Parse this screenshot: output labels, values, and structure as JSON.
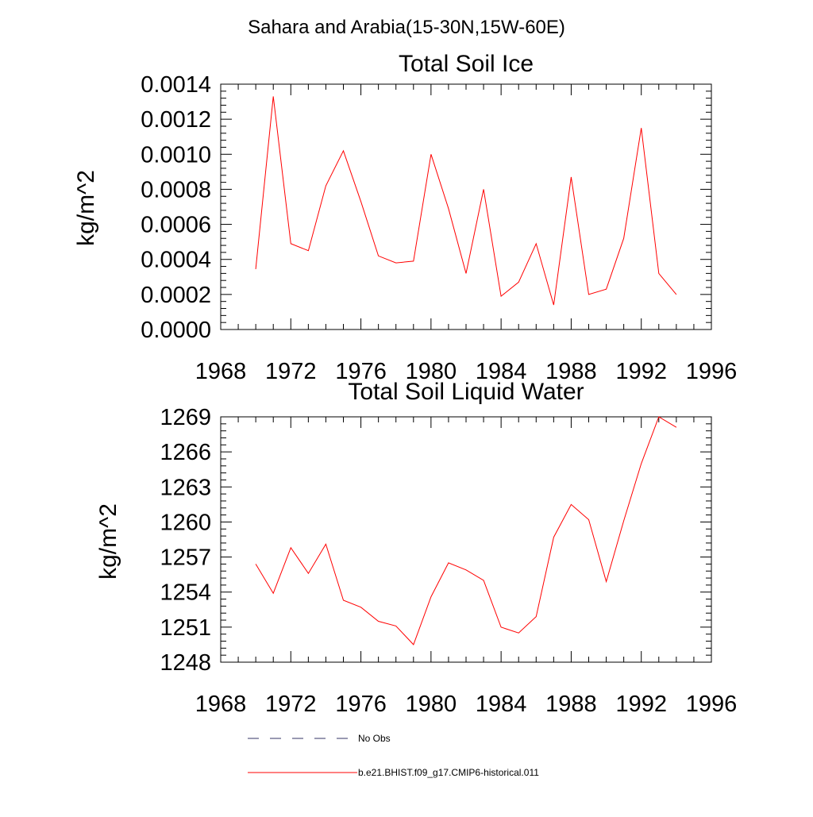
{
  "page_title": "Sahara and Arabia(15-30N,15W-60E)",
  "chart_data": [
    {
      "type": "line",
      "title": "Total Soil Ice",
      "xlabel": "",
      "ylabel": "kg/m^2",
      "xlim": [
        1968,
        1996
      ],
      "ylim": [
        0,
        0.0014
      ],
      "x_ticks": [
        "1968",
        "1972",
        "1976",
        "1980",
        "1984",
        "1988",
        "1992",
        "1996"
      ],
      "y_ticks": [
        "0.0000",
        "0.0002",
        "0.0004",
        "0.0006",
        "0.0008",
        "0.0010",
        "0.0012",
        "0.0014"
      ],
      "x": [
        1970,
        1971,
        1972,
        1973,
        1974,
        1975,
        1976,
        1977,
        1978,
        1979,
        1980,
        1981,
        1982,
        1983,
        1984,
        1985,
        1986,
        1987,
        1988,
        1989,
        1990,
        1991,
        1992,
        1993,
        1994
      ],
      "series": [
        {
          "name": "b.e21.BHIST.f09_g17.CMIP6-historical.011",
          "color": "#ff0000",
          "values": [
            0.000345,
            0.00133,
            0.00049,
            0.00045,
            0.00082,
            0.00102,
            0.00073,
            0.00042,
            0.00038,
            0.00039,
            0.001,
            0.00069,
            0.00032,
            0.0008,
            0.00019,
            0.00027,
            0.00049,
            0.00014,
            0.00087,
            0.0002,
            0.00023,
            0.00052,
            0.00115,
            0.00032,
            0.0002
          ]
        }
      ],
      "grid": false
    },
    {
      "type": "line",
      "title": "Total Soil Liquid Water",
      "xlabel": "",
      "ylabel": "kg/m^2",
      "xlim": [
        1968,
        1996
      ],
      "ylim": [
        1248,
        1269
      ],
      "x_ticks": [
        "1968",
        "1972",
        "1976",
        "1980",
        "1984",
        "1988",
        "1992",
        "1996"
      ],
      "y_ticks": [
        "1248",
        "1251",
        "1254",
        "1257",
        "1260",
        "1263",
        "1266",
        "1269"
      ],
      "x": [
        1970,
        1971,
        1972,
        1973,
        1974,
        1975,
        1976,
        1977,
        1978,
        1979,
        1980,
        1981,
        1982,
        1983,
        1984,
        1985,
        1986,
        1987,
        1988,
        1989,
        1990,
        1991,
        1992,
        1993,
        1994
      ],
      "series": [
        {
          "name": "b.e21.BHIST.f09_g17.CMIP6-historical.011",
          "color": "#ff0000",
          "values": [
            1256.4,
            1253.9,
            1257.8,
            1255.6,
            1258.1,
            1253.3,
            1252.7,
            1251.5,
            1251.1,
            1249.5,
            1253.6,
            1256.5,
            1255.9,
            1255.0,
            1251.0,
            1250.5,
            1251.9,
            1258.7,
            1261.5,
            1260.2,
            1254.9,
            1260.1,
            1265.0,
            1269.0,
            1268.1
          ]
        }
      ],
      "grid": false
    }
  ],
  "legend": {
    "items": [
      {
        "label": "No Obs",
        "color": "#333366",
        "dash": true
      },
      {
        "label": "b.e21.BHIST.f09_g17.CMIP6-historical.011",
        "color": "#ff0000",
        "dash": false
      }
    ]
  }
}
